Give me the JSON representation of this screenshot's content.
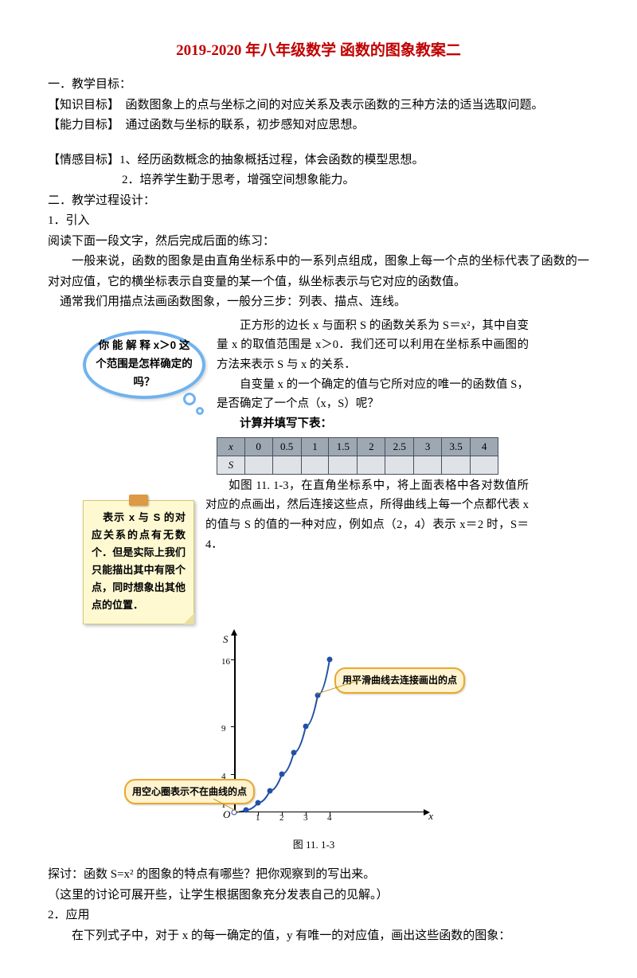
{
  "title": "2019-2020 年八年级数学 函数的图象教案二",
  "section1": {
    "h": "一．教学目标：",
    "knowledge_label": "【知识目标】",
    "knowledge_text": "　函数图象上的点与坐标之间的对应关系及表示函数的三种方法的适当选取问题。",
    "ability_label": "【能力目标】",
    "ability_text": "　通过函数与坐标的联系，初步感知对应思想。",
    "emotion_label": "【情感目标】",
    "emotion_1": "1、经历函数概念的抽象概括过程，体会函数的模型思想。",
    "emotion_2": "2．培养学生勤于思考，增强空间想象能力。"
  },
  "section2": {
    "h": "二．教学过程设计：",
    "s1": "1．引入",
    "s1_intro": "阅读下面一段文字，然后完成后面的练习：",
    "p1": "一般来说，函数的图象是由直角坐标系中的一系列点组成，图象上每一个点的坐标代表了函数的一对对应值，它的横坐标表示自变量的某一个值，纵坐标表示与它对应的函数值。",
    "p2": "通常我们用描点法画函数图象，一般分三步：列表、描点、连线。"
  },
  "bubble": "你 能 解 释 x＞0 这个范围是怎样确定的吗？",
  "rhs": {
    "l1": "正方形的边长 x 与面积 S 的函数关系为 S＝x²，其中自变量 x 的取值范围是 x＞0．我们还可以利用在坐标系中画图的方法来表示 S 与 x 的关系．",
    "l2": "自变量 x 的一个确定的值与它所对应的唯一的函数值 S，是否确定了一个点（x，S）呢？",
    "l3": "计算并填写下表："
  },
  "table": {
    "header": [
      "x",
      "0",
      "0.5",
      "1",
      "1.5",
      "2",
      "2.5",
      "3",
      "3.5",
      "4"
    ],
    "row2": [
      "S",
      "",
      "",
      "",
      "",
      "",
      "",
      "",
      "",
      ""
    ]
  },
  "sticky": "　表示 x 与 S 的对应关系的点有无数个．但是实际上我们只能描出其中有限个点，同时想象出其他点的位置．",
  "chart": {
    "intro": "如图 11. 1-3，在直角坐标系中，将上面表格中各对数值所对应的点画出，然后连接这些点，所得曲线上每一个点都代表 x 的值与 S 的值的一种对应，例如点（2，4）表示 x＝2 时，S＝4．",
    "y_label": "S",
    "x_label": "x",
    "origin": "O",
    "y_ticks": [
      {
        "v": "1",
        "y": 218
      },
      {
        "v": "4",
        "y": 182
      },
      {
        "v": "9",
        "y": 122
      },
      {
        "v": "16",
        "y": 38
      }
    ],
    "x_ticks": [
      {
        "v": "1",
        "x": 80
      },
      {
        "v": "2",
        "x": 110
      },
      {
        "v": "3",
        "x": 140
      },
      {
        "v": "4",
        "x": 170
      }
    ],
    "callout1": "用平滑曲线去连接画出的点",
    "callout2": "用空心圈表示不在曲线的点",
    "caption": "图 11. 1-3",
    "points": [
      {
        "x": 50,
        "y": 230,
        "hollow": true
      },
      {
        "x": 65,
        "y": 227
      },
      {
        "x": 80,
        "y": 218
      },
      {
        "x": 95,
        "y": 203
      },
      {
        "x": 110,
        "y": 182
      },
      {
        "x": 125,
        "y": 155
      },
      {
        "x": 140,
        "y": 122
      },
      {
        "x": 155,
        "y": 83
      },
      {
        "x": 170,
        "y": 38
      }
    ],
    "curve_color": "#2250a6",
    "callout_fill": "#fff3d0",
    "callout_border": "#e9a82c"
  },
  "footer": {
    "discuss": "探讨：函数 S=x² 的图象的特点有哪些？把你观察到的写出来。",
    "note": "（这里的讨论可展开些，让学生根据图象充分发表自己的见解。）",
    "s2": "2．应用",
    "app_text": "在下列式子中，对于 x 的每一确定的值，y 有唯一的对应值，画出这些函数的图象："
  }
}
